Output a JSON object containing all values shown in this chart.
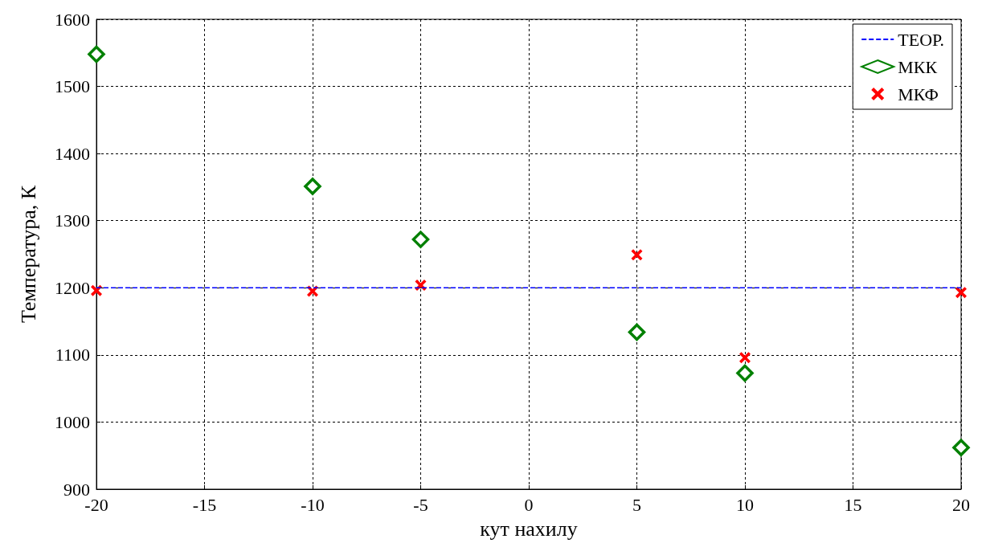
{
  "chart_data": {
    "type": "scatter",
    "xlabel": "кут нахилу",
    "ylabel": "Температура, К",
    "xlim": [
      -20,
      20
    ],
    "xticks": [
      -20,
      -15,
      -10,
      -5,
      0,
      5,
      10,
      15,
      20
    ],
    "ylim": [
      900,
      1600
    ],
    "yticks": [
      900,
      1000,
      1100,
      1200,
      1300,
      1400,
      1500,
      1600
    ],
    "grid": true,
    "legend": "top right",
    "series": [
      {
        "name": "ТЕОР.",
        "type": "line",
        "color": "#0000ff",
        "line_style": "dashed",
        "marker": "none",
        "x": [
          -20,
          20
        ],
        "values": [
          1200,
          1200
        ]
      },
      {
        "name": "МКК",
        "color": "#008000",
        "marker": "diamond",
        "x": [
          -20,
          -10,
          -5,
          5,
          10,
          20
        ],
        "values": [
          1548,
          1351,
          1272,
          1134,
          1073,
          962
        ]
      },
      {
        "name": "МКФ",
        "color": "#ff0000",
        "marker": "cross",
        "x": [
          -20,
          -10,
          -5,
          5,
          10,
          20
        ],
        "values": [
          1196,
          1195,
          1204,
          1249,
          1096,
          1193
        ]
      }
    ]
  }
}
